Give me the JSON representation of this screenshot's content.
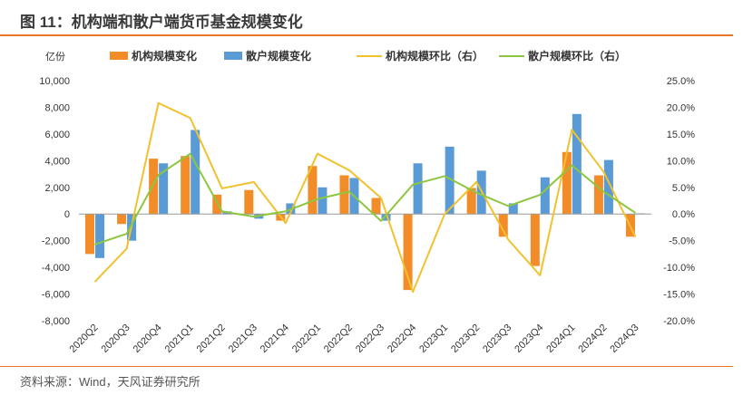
{
  "figure": {
    "title": "图 11：机构端和散户端货币基金规模变化",
    "source": "资料来源：Wind，天风证券研究所"
  },
  "chart_data": {
    "type": "bar",
    "unit_label": "亿份",
    "categories": [
      "2020Q2",
      "2020Q3",
      "2020Q4",
      "2021Q1",
      "2021Q2",
      "2021Q3",
      "2021Q4",
      "2022Q1",
      "2022Q2",
      "2022Q3",
      "2022Q4",
      "2023Q1",
      "2023Q2",
      "2023Q3",
      "2023Q4",
      "2024Q1",
      "2024Q2",
      "2024Q3"
    ],
    "left_axis": {
      "min": -8000,
      "max": 10000,
      "ticks": [
        -8000,
        -6000,
        -4000,
        -2000,
        0,
        2000,
        4000,
        6000,
        8000,
        10000
      ],
      "tick_labels": [
        "-8,000",
        "-6,000",
        "-4,000",
        "-2,000",
        "0",
        "2,000",
        "4,000",
        "6,000",
        "8,000",
        "10,000"
      ]
    },
    "right_axis": {
      "min": -20,
      "max": 25,
      "ticks": [
        -20,
        -15,
        -10,
        -5,
        0,
        5,
        10,
        15,
        20,
        25
      ],
      "tick_labels": [
        "-20.0%",
        "-15.0%",
        "-10.0%",
        "-5.0%",
        "0.0%",
        "5.0%",
        "10.0%",
        "15.0%",
        "20.0%",
        "25.0%"
      ]
    },
    "grid": false,
    "legend_position": "top",
    "series": [
      {
        "name": "机构规模变化",
        "kind": "bar",
        "axis": "left",
        "color": "#F28C28",
        "values": [
          -3000,
          -750,
          4150,
          4350,
          1450,
          1800,
          -500,
          3600,
          2900,
          1200,
          -5700,
          0,
          1950,
          -1700,
          -3900,
          4650,
          2900,
          -1700
        ]
      },
      {
        "name": "散户规模变化",
        "kind": "bar",
        "axis": "left",
        "color": "#5B9BD5",
        "values": [
          -3300,
          -2000,
          3800,
          6300,
          200,
          -350,
          800,
          2000,
          2700,
          -500,
          3800,
          5050,
          3250,
          800,
          2750,
          7500,
          4050,
          50
        ]
      },
      {
        "name": "机构规模环比（右）",
        "kind": "line",
        "axis": "right",
        "color": "#F2C12E",
        "values": [
          -12.7,
          -6.5,
          20.8,
          18.0,
          4.8,
          6.0,
          -1.7,
          11.3,
          8.2,
          3.0,
          -14.6,
          0,
          6.0,
          -4.8,
          -11.5,
          15.8,
          7.9,
          -4.3
        ]
      },
      {
        "name": "散户规模环比（右）",
        "kind": "line",
        "axis": "right",
        "color": "#8DC63F",
        "values": [
          -5.7,
          -3.7,
          7.3,
          11.3,
          0.5,
          -0.5,
          0.5,
          2.8,
          4.2,
          -1.3,
          5.5,
          7.1,
          4.0,
          1.5,
          3.6,
          9.1,
          4.2,
          0.2
        ]
      }
    ]
  }
}
